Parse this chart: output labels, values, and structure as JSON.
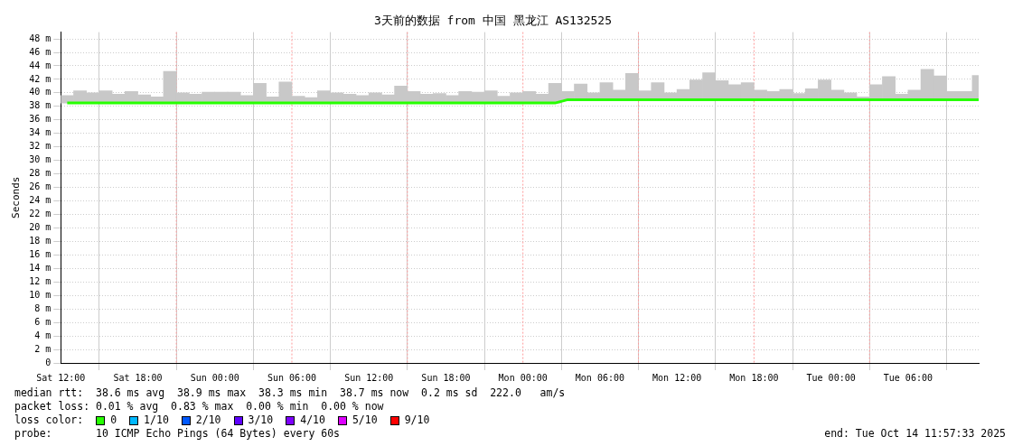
{
  "chart_data": {
    "type": "line",
    "title": "3天前的数据 from 中国 黑龙江 AS132525",
    "ylabel": "Seconds",
    "x": [
      "2025-10-11T12:30",
      "2025-10-11T13:30",
      "2025-10-11T14:30",
      "2025-10-11T15:30",
      "2025-10-11T16:30",
      "2025-10-11T17:30",
      "2025-10-11T18:30",
      "2025-10-11T19:30",
      "2025-10-11T20:30",
      "2025-10-11T21:30",
      "2025-10-11T22:30",
      "2025-10-11T23:30",
      "2025-10-12T00:30",
      "2025-10-12T01:30",
      "2025-10-12T02:30",
      "2025-10-12T03:30",
      "2025-10-12T04:30",
      "2025-10-12T05:30",
      "2025-10-12T06:30",
      "2025-10-12T07:30",
      "2025-10-12T08:30",
      "2025-10-12T09:30",
      "2025-10-12T10:30",
      "2025-10-12T11:30",
      "2025-10-12T12:30",
      "2025-10-12T13:30",
      "2025-10-12T14:30",
      "2025-10-12T15:30",
      "2025-10-12T16:30",
      "2025-10-12T17:30",
      "2025-10-12T18:30",
      "2025-10-12T19:30",
      "2025-10-12T20:30",
      "2025-10-12T21:30",
      "2025-10-12T22:30",
      "2025-10-12T23:30",
      "2025-10-13T00:30",
      "2025-10-13T01:30",
      "2025-10-13T02:30",
      "2025-10-13T03:30",
      "2025-10-13T04:30",
      "2025-10-13T05:30",
      "2025-10-13T06:30",
      "2025-10-13T07:30",
      "2025-10-13T08:30",
      "2025-10-13T09:30",
      "2025-10-13T10:30",
      "2025-10-13T11:30",
      "2025-10-13T12:30",
      "2025-10-13T13:30",
      "2025-10-13T14:30",
      "2025-10-13T15:30",
      "2025-10-13T16:30",
      "2025-10-13T17:30",
      "2025-10-13T18:30",
      "2025-10-13T19:30",
      "2025-10-13T20:30",
      "2025-10-13T21:30",
      "2025-10-13T22:30",
      "2025-10-13T23:30",
      "2025-10-14T00:30",
      "2025-10-14T01:30",
      "2025-10-14T02:30",
      "2025-10-14T03:30",
      "2025-10-14T04:30",
      "2025-10-14T05:30",
      "2025-10-14T06:30",
      "2025-10-14T07:30",
      "2025-10-14T08:30",
      "2025-10-14T09:30",
      "2025-10-14T10:30",
      "2025-10-14T11:30"
    ],
    "xlim": [
      "2025-10-11T12:00",
      "2025-10-14T11:30"
    ],
    "xticks": [
      {
        "value": "2025-10-11T12:00",
        "label": "Sat 12:00"
      },
      {
        "value": "2025-10-11T18:00",
        "label": "Sat 18:00"
      },
      {
        "value": "2025-10-12T00:00",
        "label": "Sun 00:00"
      },
      {
        "value": "2025-10-12T06:00",
        "label": "Sun 06:00"
      },
      {
        "value": "2025-10-12T12:00",
        "label": "Sun 12:00"
      },
      {
        "value": "2025-10-12T18:00",
        "label": "Sun 18:00"
      },
      {
        "value": "2025-10-13T00:00",
        "label": "Mon 00:00"
      },
      {
        "value": "2025-10-13T06:00",
        "label": "Mon 06:00"
      },
      {
        "value": "2025-10-13T12:00",
        "label": "Mon 12:00"
      },
      {
        "value": "2025-10-13T18:00",
        "label": "Mon 18:00"
      },
      {
        "value": "2025-10-14T00:00",
        "label": "Tue 00:00"
      },
      {
        "value": "2025-10-14T06:00",
        "label": "Tue 06:00"
      }
    ],
    "ylim": [
      0,
      49
    ],
    "yticks": [
      0,
      {
        "value": 2,
        "label": "2 m"
      },
      {
        "value": 4,
        "label": "4 m"
      },
      {
        "value": 6,
        "label": "6 m"
      },
      {
        "value": 8,
        "label": "8 m"
      },
      {
        "value": 10,
        "label": "10 m"
      },
      {
        "value": 12,
        "label": "12 m"
      },
      {
        "value": 14,
        "label": "14 m"
      },
      {
        "value": 16,
        "label": "16 m"
      },
      {
        "value": 18,
        "label": "18 m"
      },
      {
        "value": 20,
        "label": "20 m"
      },
      {
        "value": 22,
        "label": "22 m"
      },
      {
        "value": 24,
        "label": "24 m"
      },
      {
        "value": 26,
        "label": "26 m"
      },
      {
        "value": 28,
        "label": "28 m"
      },
      {
        "value": 30,
        "label": "30 m"
      },
      {
        "value": 32,
        "label": "32 m"
      },
      {
        "value": 34,
        "label": "34 m"
      },
      {
        "value": 36,
        "label": "36 m"
      },
      {
        "value": 38,
        "label": "38 m"
      },
      {
        "value": 40,
        "label": "40 m"
      },
      {
        "value": 42,
        "label": "42 m"
      },
      {
        "value": 44,
        "label": "44 m"
      },
      {
        "value": 46,
        "label": "46 m"
      },
      {
        "value": 48,
        "label": "48 m"
      }
    ],
    "series": [
      {
        "type": "bar",
        "color": "#c8c8c8",
        "base": [
          38.5,
          38.5,
          38.5,
          38.5,
          38.5,
          38.5,
          38.5,
          38.5,
          38.5,
          38.5,
          38.5,
          38.5,
          38.5,
          38.5,
          38.5,
          38.5,
          38.5,
          38.5,
          38.5,
          38.5,
          38.5,
          38.5,
          38.5,
          38.5,
          38.5,
          38.5,
          38.5,
          38.5,
          38.5,
          38.5,
          38.5,
          38.5,
          38.5,
          38.5,
          38.5,
          38.5,
          38.5,
          38.5,
          38.5,
          39.0,
          39.0,
          39.0,
          39.0,
          39.0,
          39.0,
          39.0,
          39.0,
          39.0,
          39.0,
          39.0,
          39.0,
          39.0,
          39.0,
          39.0,
          39.0,
          39.0,
          39.0,
          39.0,
          39.0,
          39.0,
          39.0,
          39.0,
          39.0,
          39.0,
          39.0,
          39.0,
          39.0,
          39.0,
          39.0,
          39.0,
          39.0,
          39.0
        ],
        "values": [
          1.1,
          1.8,
          1.5,
          1.8,
          1.3,
          1.7,
          1.2,
          0.9,
          4.7,
          1.5,
          1.3,
          1.6,
          1.6,
          1.6,
          1.1,
          2.9,
          0.9,
          3.1,
          1.0,
          0.8,
          1.8,
          1.5,
          1.3,
          1.1,
          1.5,
          1.2,
          2.5,
          1.7,
          1.3,
          1.4,
          1.1,
          1.7,
          1.6,
          1.8,
          1.0,
          1.5,
          1.7,
          1.3,
          2.9,
          1.2,
          2.3,
          1.0,
          2.5,
          1.4,
          3.9,
          1.3,
          2.5,
          1.0,
          1.5,
          2.9,
          4.0,
          2.8,
          2.2,
          2.5,
          1.4,
          1.2,
          1.5,
          0.9,
          1.6,
          2.9,
          1.4,
          1.0,
          0.4,
          2.2,
          3.4,
          0.8,
          1.4,
          4.5,
          3.5,
          1.2,
          1.2,
          3.6
        ]
      },
      {
        "name": "0",
        "color": "#26ff00",
        "values": [
          38.5,
          38.5,
          38.5,
          38.5,
          38.5,
          38.5,
          38.5,
          38.5,
          38.5,
          38.5,
          38.5,
          38.5,
          38.5,
          38.5,
          38.5,
          38.5,
          38.5,
          38.5,
          38.5,
          38.5,
          38.5,
          38.5,
          38.5,
          38.5,
          38.5,
          38.5,
          38.5,
          38.5,
          38.5,
          38.5,
          38.5,
          38.5,
          38.5,
          38.5,
          38.5,
          38.5,
          38.5,
          38.5,
          38.5,
          39.0,
          39.0,
          39.0,
          39.0,
          39.0,
          39.0,
          39.0,
          39.0,
          39.0,
          39.0,
          39.0,
          39.0,
          39.0,
          39.0,
          39.0,
          39.0,
          39.0,
          39.0,
          39.0,
          39.0,
          39.0,
          39.0,
          39.0,
          39.0,
          39.0,
          39.0,
          39.0,
          39.0,
          39.0,
          39.0,
          39.0,
          39.0,
          39.0
        ]
      },
      {
        "name": "1/10",
        "color": "#00b8ff",
        "values": [
          null,
          null,
          null,
          null,
          null,
          null,
          null,
          null,
          null,
          null,
          null,
          null,
          null,
          null,
          null,
          null,
          null,
          null,
          null,
          null,
          null,
          null,
          null,
          null,
          null,
          null,
          null,
          null,
          null,
          null,
          null,
          null,
          null,
          null,
          null,
          null,
          null,
          null,
          null,
          null,
          null,
          null,
          null,
          null,
          null,
          null,
          null,
          null,
          null,
          null,
          null,
          null,
          null,
          null,
          null,
          null,
          null,
          null,
          null,
          null,
          null,
          null,
          null,
          null,
          null,
          null,
          null,
          null,
          null,
          null,
          null,
          null
        ]
      },
      {
        "name": "2/10",
        "color": "#0059ff",
        "values": [
          null,
          null,
          null,
          null,
          null,
          null,
          null,
          null,
          null,
          null,
          null,
          null,
          null,
          null,
          null,
          null,
          null,
          null,
          null,
          null,
          null,
          null,
          null,
          null,
          null,
          null,
          null,
          null,
          null,
          null,
          null,
          null,
          null,
          null,
          null,
          null,
          null,
          null,
          null,
          null,
          null,
          null,
          null,
          null,
          null,
          null,
          null,
          null,
          null,
          null,
          null,
          null,
          null,
          null,
          null,
          null,
          null,
          null,
          null,
          null,
          null,
          null,
          null,
          null,
          null,
          null,
          null,
          null,
          null,
          null,
          null,
          null
        ]
      },
      {
        "name": "3/10",
        "color": "#5e00ff",
        "values": [
          null,
          null,
          null,
          null,
          null,
          null,
          null,
          null,
          null,
          null,
          null,
          null,
          null,
          null,
          null,
          null,
          null,
          null,
          null,
          null,
          null,
          null,
          null,
          null,
          null,
          null,
          null,
          null,
          null,
          null,
          null,
          null,
          null,
          null,
          null,
          null,
          null,
          null,
          null,
          null,
          null,
          null,
          null,
          null,
          null,
          null,
          null,
          null,
          null,
          null,
          null,
          null,
          null,
          null,
          null,
          null,
          null,
          null,
          null,
          null,
          null,
          null,
          null,
          null,
          null,
          null,
          null,
          null,
          null,
          null,
          null,
          null
        ]
      },
      {
        "name": "4/10",
        "color": "#7e00ff",
        "values": [
          null,
          null,
          null,
          null,
          null,
          null,
          null,
          null,
          null,
          null,
          null,
          null,
          null,
          null,
          null,
          null,
          null,
          null,
          null,
          null,
          null,
          null,
          null,
          null,
          null,
          null,
          null,
          null,
          null,
          null,
          null,
          null,
          null,
          null,
          null,
          null,
          null,
          null,
          null,
          null,
          null,
          null,
          null,
          null,
          null,
          null,
          null,
          null,
          null,
          null,
          null,
          null,
          null,
          null,
          null,
          null,
          null,
          null,
          null,
          null,
          null,
          null,
          null,
          null,
          null,
          null,
          null,
          null,
          null,
          null,
          null,
          null
        ]
      },
      {
        "name": "5/10",
        "color": "#dd00ff",
        "values": [
          null,
          null,
          null,
          null,
          null,
          null,
          null,
          null,
          null,
          null,
          null,
          null,
          null,
          null,
          null,
          null,
          null,
          null,
          null,
          null,
          null,
          null,
          null,
          null,
          null,
          null,
          null,
          null,
          null,
          null,
          null,
          null,
          null,
          null,
          null,
          null,
          null,
          null,
          null,
          null,
          null,
          null,
          null,
          null,
          null,
          null,
          null,
          null,
          null,
          null,
          null,
          null,
          null,
          null,
          null,
          null,
          null,
          null,
          null,
          null,
          null,
          null,
          null,
          null,
          null,
          null,
          null,
          null,
          null,
          null,
          null,
          null
        ]
      },
      {
        "name": "9/10",
        "color": "#ff0000",
        "values": [
          null,
          null,
          null,
          null,
          null,
          null,
          null,
          null,
          null,
          null,
          null,
          null,
          null,
          null,
          null,
          null,
          null,
          null,
          null,
          null,
          null,
          null,
          null,
          null,
          null,
          null,
          null,
          null,
          null,
          null,
          null,
          null,
          null,
          null,
          null,
          null,
          null,
          null,
          null,
          null,
          null,
          null,
          null,
          null,
          null,
          null,
          null,
          null,
          null,
          null,
          null,
          null,
          null,
          null,
          null,
          null,
          null,
          null,
          null,
          null,
          null,
          null,
          null,
          null,
          null,
          null,
          null,
          null,
          null,
          null,
          null,
          null
        ]
      }
    ],
    "ref_lines": [
      {
        "axis": "x",
        "value": "2025-10-11T21:00",
        "color": "#ff9999",
        "line_style": "dotted"
      },
      {
        "axis": "x",
        "value": "2025-10-12T06:00",
        "color": "#ff9999",
        "line_style": "dotted"
      },
      {
        "axis": "x",
        "value": "2025-10-12T15:00",
        "color": "#ff9999",
        "line_style": "dotted"
      },
      {
        "axis": "x",
        "value": "2025-10-13T00:00",
        "color": "#ff9999",
        "line_style": "dotted"
      },
      {
        "axis": "x",
        "value": "2025-10-13T09:00",
        "color": "#ff9999",
        "line_style": "dotted"
      },
      {
        "axis": "x",
        "value": "2025-10-13T18:00",
        "color": "#ff9999",
        "line_style": "dotted"
      },
      {
        "axis": "x",
        "value": "2025-10-14T03:00",
        "color": "#ff9999",
        "line_style": "dotted"
      }
    ],
    "grid": true,
    "marker": "none",
    "legend": "bottom left",
    "legend_title": "loss color:",
    "annotations": [
      "median rtt:  38.6 ms avg  38.9 ms max  38.3 ms min  38.7 ms now  0.2 ms sd  222.0   am/s",
      "packet loss: 0.01 % avg  0.83 % max  0.00 % min  0.00 % now",
      "probe:       10 ICMP Echo Pings (64 Bytes) every 60s",
      "end: Tue Oct 14 11:57:33 2025"
    ]
  }
}
